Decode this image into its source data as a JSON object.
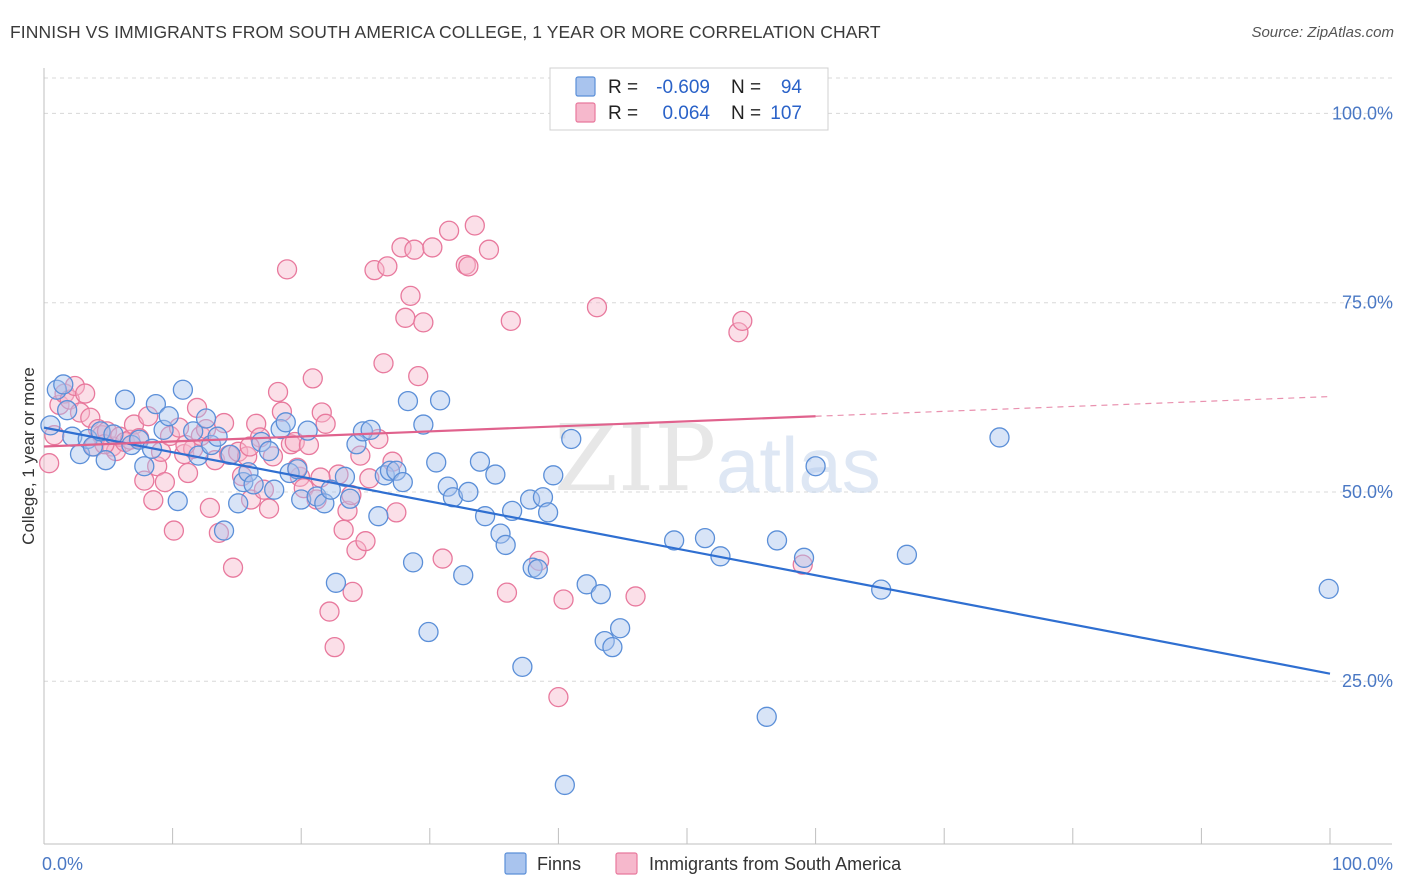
{
  "title": "FINNISH VS IMMIGRANTS FROM SOUTH AMERICA COLLEGE, 1 YEAR OR MORE CORRELATION CHART",
  "source": "Source: ZipAtlas.com",
  "watermark": {
    "zip": "ZIP",
    "atlas": "atlas"
  },
  "legend": {
    "r_label": "R =",
    "n_label": "N =",
    "rows": [
      {
        "r": "-0.609",
        "n": "94"
      },
      {
        "r": "0.064",
        "n": "107"
      }
    ]
  },
  "bottom_legend": [
    "Finns",
    "Immigrants from South America"
  ],
  "colors": {
    "finns_fill": "#a9c4ee",
    "finns_stroke": "#5b8fd8",
    "finns_line": "#2f6fd1",
    "immig_fill": "#f6b8cc",
    "immig_stroke": "#e8799d",
    "immig_line": "#e0628d",
    "tick_text": "#4a78c4",
    "grid": "#d8d8d8"
  },
  "chart_data": {
    "type": "scatter",
    "xlabel": "",
    "ylabel": "College, 1 year or more",
    "xlim": [
      0,
      100
    ],
    "ylim": [
      3.5,
      106
    ],
    "x_tick_labels": [
      {
        "x": 0,
        "label": "0.0%"
      },
      {
        "x": 100,
        "label": "100.0%"
      }
    ],
    "y_tick_labels": [
      {
        "y": 25,
        "label": "25.0%"
      },
      {
        "y": 50,
        "label": "50.0%"
      },
      {
        "y": 75,
        "label": "75.0%"
      },
      {
        "y": 100,
        "label": "100.0%"
      }
    ],
    "grid": true,
    "legend_position": "top-center",
    "series": [
      {
        "name": "Finns",
        "r": -0.609,
        "n": 94,
        "trend": {
          "x0": 0,
          "y0": 58.5,
          "x1": 100,
          "y1": 26.0
        },
        "points": [
          [
            0.5,
            58.8
          ],
          [
            1.0,
            63.5
          ],
          [
            1.5,
            64.2
          ],
          [
            1.8,
            60.8
          ],
          [
            2.2,
            57.3
          ],
          [
            2.8,
            55.0
          ],
          [
            3.4,
            57.0
          ],
          [
            3.8,
            56.0
          ],
          [
            4.4,
            58.0
          ],
          [
            4.8,
            54.2
          ],
          [
            5.4,
            57.6
          ],
          [
            6.3,
            62.2
          ],
          [
            6.8,
            56.2
          ],
          [
            7.4,
            56.9
          ],
          [
            7.8,
            53.4
          ],
          [
            8.4,
            55.7
          ],
          [
            8.7,
            61.6
          ],
          [
            9.3,
            58.2
          ],
          [
            9.7,
            60.0
          ],
          [
            10.4,
            48.8
          ],
          [
            10.8,
            63.5
          ],
          [
            11.6,
            58.0
          ],
          [
            12.0,
            54.8
          ],
          [
            12.6,
            59.7
          ],
          [
            13.0,
            56.2
          ],
          [
            13.5,
            57.3
          ],
          [
            14.0,
            44.9
          ],
          [
            14.5,
            54.9
          ],
          [
            15.1,
            48.5
          ],
          [
            15.5,
            51.3
          ],
          [
            15.9,
            52.6
          ],
          [
            16.3,
            51.0
          ],
          [
            16.9,
            56.6
          ],
          [
            17.5,
            55.4
          ],
          [
            17.9,
            50.3
          ],
          [
            18.4,
            58.3
          ],
          [
            18.8,
            59.2
          ],
          [
            19.1,
            52.5
          ],
          [
            19.7,
            53.0
          ],
          [
            20.0,
            49.0
          ],
          [
            20.5,
            58.1
          ],
          [
            21.2,
            49.4
          ],
          [
            21.8,
            48.5
          ],
          [
            22.3,
            50.3
          ],
          [
            22.7,
            38.0
          ],
          [
            23.4,
            52.0
          ],
          [
            23.8,
            49.1
          ],
          [
            24.3,
            56.3
          ],
          [
            24.8,
            58.0
          ],
          [
            25.4,
            58.2
          ],
          [
            26.0,
            46.8
          ],
          [
            26.5,
            52.2
          ],
          [
            26.9,
            52.8
          ],
          [
            27.4,
            52.8
          ],
          [
            27.9,
            51.3
          ],
          [
            28.3,
            62.0
          ],
          [
            28.7,
            40.7
          ],
          [
            29.5,
            58.9
          ],
          [
            29.9,
            31.5
          ],
          [
            30.5,
            53.9
          ],
          [
            30.8,
            62.1
          ],
          [
            31.4,
            50.7
          ],
          [
            31.8,
            49.3
          ],
          [
            32.6,
            39.0
          ],
          [
            33.0,
            50.0
          ],
          [
            33.9,
            54.0
          ],
          [
            34.3,
            46.8
          ],
          [
            35.1,
            52.3
          ],
          [
            35.5,
            44.5
          ],
          [
            35.9,
            43.0
          ],
          [
            36.4,
            47.5
          ],
          [
            37.2,
            26.9
          ],
          [
            37.8,
            49.0
          ],
          [
            38.0,
            40.0
          ],
          [
            38.4,
            39.8
          ],
          [
            38.8,
            49.3
          ],
          [
            39.2,
            47.3
          ],
          [
            39.6,
            52.2
          ],
          [
            40.5,
            11.3
          ],
          [
            41.0,
            57.0
          ],
          [
            42.2,
            37.8
          ],
          [
            43.3,
            36.5
          ],
          [
            43.6,
            30.3
          ],
          [
            44.2,
            29.5
          ],
          [
            44.8,
            32.0
          ],
          [
            49.0,
            43.6
          ],
          [
            51.4,
            43.9
          ],
          [
            52.6,
            41.5
          ],
          [
            56.2,
            20.3
          ],
          [
            57.0,
            43.6
          ],
          [
            59.1,
            41.3
          ],
          [
            60.0,
            53.4
          ],
          [
            65.1,
            37.1
          ],
          [
            67.1,
            41.7
          ],
          [
            74.3,
            57.2
          ],
          [
            99.9,
            37.2
          ]
        ]
      },
      {
        "name": "Immigrants from South America",
        "r": 0.064,
        "n": 107,
        "trend": {
          "x0": 0,
          "y0": 56.0,
          "x1": 60,
          "y1": 60.0,
          "dashed_to": {
            "x": 100,
            "y": 62.6
          }
        },
        "points": [
          [
            0.4,
            53.8
          ],
          [
            0.8,
            57.5
          ],
          [
            1.2,
            61.5
          ],
          [
            1.6,
            63.0
          ],
          [
            2.0,
            62.2
          ],
          [
            2.4,
            64.0
          ],
          [
            2.8,
            60.5
          ],
          [
            3.2,
            63.0
          ],
          [
            3.6,
            59.8
          ],
          [
            3.9,
            56.0
          ],
          [
            4.2,
            58.3
          ],
          [
            4.5,
            57.5
          ],
          [
            4.9,
            58.0
          ],
          [
            5.3,
            56.0
          ],
          [
            5.6,
            55.4
          ],
          [
            5.9,
            57.3
          ],
          [
            6.3,
            56.6
          ],
          [
            6.7,
            56.9
          ],
          [
            7.0,
            58.9
          ],
          [
            7.4,
            57.1
          ],
          [
            7.8,
            51.5
          ],
          [
            8.1,
            60.0
          ],
          [
            8.5,
            48.9
          ],
          [
            8.8,
            53.4
          ],
          [
            9.1,
            55.3
          ],
          [
            9.4,
            51.3
          ],
          [
            9.8,
            57.4
          ],
          [
            10.1,
            44.9
          ],
          [
            10.5,
            58.5
          ],
          [
            10.9,
            55.0
          ],
          [
            11.2,
            52.5
          ],
          [
            11.6,
            55.7
          ],
          [
            11.9,
            61.1
          ],
          [
            12.2,
            57.4
          ],
          [
            12.6,
            58.3
          ],
          [
            12.9,
            47.9
          ],
          [
            13.3,
            54.2
          ],
          [
            13.6,
            44.6
          ],
          [
            14.0,
            59.1
          ],
          [
            14.4,
            54.9
          ],
          [
            14.7,
            40.0
          ],
          [
            15.1,
            55.3
          ],
          [
            15.4,
            52.1
          ],
          [
            15.8,
            54.7
          ],
          [
            16.1,
            49.0
          ],
          [
            16.5,
            59.0
          ],
          [
            16.8,
            57.2
          ],
          [
            17.1,
            50.3
          ],
          [
            17.5,
            47.8
          ],
          [
            17.8,
            54.7
          ],
          [
            18.2,
            63.2
          ],
          [
            18.5,
            60.6
          ],
          [
            18.9,
            79.4
          ],
          [
            19.2,
            56.3
          ],
          [
            19.5,
            56.6
          ],
          [
            19.9,
            52.0
          ],
          [
            20.2,
            50.5
          ],
          [
            20.6,
            56.2
          ],
          [
            20.9,
            65.0
          ],
          [
            21.2,
            49.0
          ],
          [
            21.6,
            60.5
          ],
          [
            21.9,
            59.0
          ],
          [
            22.2,
            34.2
          ],
          [
            22.6,
            29.5
          ],
          [
            22.9,
            52.3
          ],
          [
            23.3,
            45.0
          ],
          [
            23.6,
            47.5
          ],
          [
            23.9,
            49.6
          ],
          [
            24.3,
            42.3
          ],
          [
            24.6,
            54.8
          ],
          [
            25.0,
            43.5
          ],
          [
            25.3,
            51.8
          ],
          [
            25.7,
            79.3
          ],
          [
            26.0,
            57.0
          ],
          [
            26.4,
            67.0
          ],
          [
            26.7,
            79.8
          ],
          [
            27.1,
            54.0
          ],
          [
            27.4,
            47.3
          ],
          [
            27.8,
            82.3
          ],
          [
            28.1,
            73.0
          ],
          [
            28.5,
            75.9
          ],
          [
            28.8,
            82.0
          ],
          [
            29.1,
            65.3
          ],
          [
            29.5,
            72.4
          ],
          [
            30.2,
            82.3
          ],
          [
            31.0,
            41.2
          ],
          [
            31.5,
            84.5
          ],
          [
            32.8,
            80.0
          ],
          [
            33.5,
            85.2
          ],
          [
            33.0,
            79.8
          ],
          [
            34.6,
            82.0
          ],
          [
            36.0,
            36.7
          ],
          [
            36.3,
            72.6
          ],
          [
            38.5,
            40.9
          ],
          [
            40.0,
            22.9
          ],
          [
            40.4,
            35.8
          ],
          [
            43.0,
            74.4
          ],
          [
            46.0,
            36.2
          ],
          [
            54.0,
            71.1
          ],
          [
            54.3,
            72.6
          ],
          [
            59.0,
            40.4
          ],
          [
            4.7,
            56.3
          ],
          [
            11.0,
            56.2
          ],
          [
            16.0,
            56.0
          ],
          [
            19.7,
            53.2
          ],
          [
            21.5,
            51.9
          ],
          [
            24.0,
            36.8
          ]
        ]
      }
    ]
  }
}
